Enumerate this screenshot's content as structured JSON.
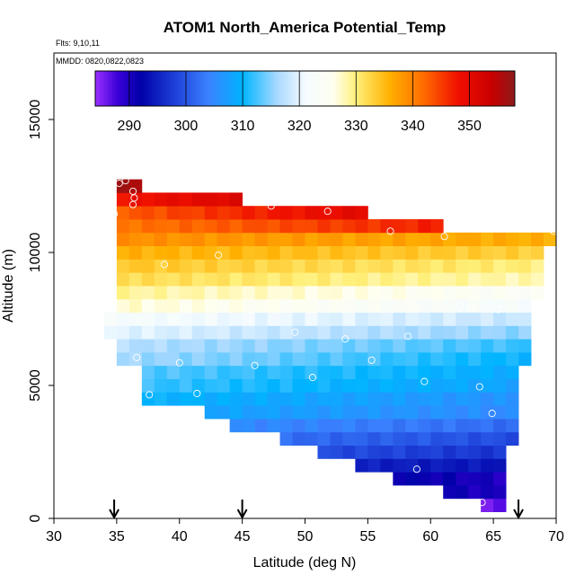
{
  "chart_data": {
    "type": "heatmap",
    "title": "ATOM1 North_America Potential_Temp",
    "annotations": [
      "Flts: 9,10,11",
      "MMDD: 0820,0822,0823"
    ],
    "xlabel": "Latitude (deg N)",
    "ylabel": "Altitude (m)",
    "xlim": [
      30,
      70
    ],
    "ylim": [
      0,
      17500
    ],
    "x_ticks": [
      30,
      35,
      40,
      45,
      50,
      55,
      60,
      65,
      70
    ],
    "y_ticks": [
      0,
      5000,
      10000,
      15000
    ],
    "colorbar": {
      "min": 284,
      "max": 358,
      "ticks": [
        290,
        300,
        310,
        320,
        330,
        340,
        350
      ],
      "stops": [
        {
          "v": 284,
          "color": "#9b30ff"
        },
        {
          "v": 288,
          "color": "#3a00d8"
        },
        {
          "v": 292,
          "color": "#0000a8"
        },
        {
          "v": 298,
          "color": "#1e40d8"
        },
        {
          "v": 304,
          "color": "#3b82ff"
        },
        {
          "v": 310,
          "color": "#00b4ff"
        },
        {
          "v": 316,
          "color": "#a6d8ff"
        },
        {
          "v": 321,
          "color": "#f4fbff"
        },
        {
          "v": 326,
          "color": "#fffff0"
        },
        {
          "v": 330,
          "color": "#fff07a"
        },
        {
          "v": 336,
          "color": "#ffb000"
        },
        {
          "v": 342,
          "color": "#ff6a00"
        },
        {
          "v": 348,
          "color": "#f01000"
        },
        {
          "v": 354,
          "color": "#c80000"
        },
        {
          "v": 358,
          "color": "#8b1a1a"
        }
      ]
    },
    "arrows_at_latitude": [
      34.8,
      45,
      67
    ],
    "bin_size": {
      "latitude_deg": 1,
      "altitude_m": 500
    },
    "row_profiles": [
      {
        "alt": 500,
        "lat_from": 64.5,
        "lat_to": 65.5,
        "temp_south": 286,
        "temp_north": 286
      },
      {
        "alt": 1000,
        "lat_from": 61.5,
        "lat_to": 65.5,
        "temp_south": 291,
        "temp_north": 290
      },
      {
        "alt": 1500,
        "lat_from": 57.5,
        "lat_to": 65.5,
        "temp_south": 292,
        "temp_north": 290
      },
      {
        "alt": 2000,
        "lat_from": 54.5,
        "lat_to": 65.5,
        "temp_south": 295,
        "temp_north": 294
      },
      {
        "alt": 2500,
        "lat_from": 51.5,
        "lat_to": 65.5,
        "temp_south": 299,
        "temp_north": 297
      },
      {
        "alt": 3000,
        "lat_from": 48.5,
        "lat_to": 66.5,
        "temp_south": 302,
        "temp_north": 299
      },
      {
        "alt": 3500,
        "lat_from": 44.5,
        "lat_to": 66.5,
        "temp_south": 305,
        "temp_north": 302
      },
      {
        "alt": 4000,
        "lat_from": 42.5,
        "lat_to": 66.5,
        "temp_south": 308,
        "temp_north": 305
      },
      {
        "alt": 4500,
        "lat_from": 37.5,
        "lat_to": 66.5,
        "temp_south": 310,
        "temp_north": 306
      },
      {
        "alt": 5000,
        "lat_from": 37.5,
        "lat_to": 66.5,
        "temp_south": 312,
        "temp_north": 308
      },
      {
        "alt": 5500,
        "lat_from": 37.5,
        "lat_to": 66.5,
        "temp_south": 313,
        "temp_north": 309
      },
      {
        "alt": 6000,
        "lat_from": 35.5,
        "lat_to": 67.5,
        "temp_south": 316,
        "temp_north": 310
      },
      {
        "alt": 6500,
        "lat_from": 35.5,
        "lat_to": 67.5,
        "temp_south": 317,
        "temp_north": 312
      },
      {
        "alt": 7000,
        "lat_from": 34.5,
        "lat_to": 67.5,
        "temp_south": 320,
        "temp_north": 315
      },
      {
        "alt": 7500,
        "lat_from": 34.5,
        "lat_to": 67.5,
        "temp_south": 322,
        "temp_north": 318
      },
      {
        "alt": 8000,
        "lat_from": 35.5,
        "lat_to": 67.5,
        "temp_south": 327,
        "temp_north": 322
      },
      {
        "alt": 8500,
        "lat_from": 35.5,
        "lat_to": 68.5,
        "temp_south": 329,
        "temp_north": 324
      },
      {
        "alt": 9000,
        "lat_from": 35.5,
        "lat_to": 68.5,
        "temp_south": 332,
        "temp_north": 328
      },
      {
        "alt": 9500,
        "lat_from": 35.5,
        "lat_to": 68.5,
        "temp_south": 334,
        "temp_north": 330
      },
      {
        "alt": 10000,
        "lat_from": 35.5,
        "lat_to": 68.5,
        "temp_south": 336,
        "temp_north": 333
      },
      {
        "alt": 10500,
        "lat_from": 35.5,
        "lat_to": 69.5,
        "temp_south": 339,
        "temp_north": 336
      },
      {
        "alt": 11000,
        "lat_from": 35.5,
        "lat_to": 60.5,
        "temp_south": 341,
        "temp_north": 347
      },
      {
        "alt": 11500,
        "lat_from": 35.5,
        "lat_to": 54.5,
        "temp_south": 343,
        "temp_north": 350
      },
      {
        "alt": 12000,
        "lat_from": 35.5,
        "lat_to": 44.5,
        "temp_south": 348,
        "temp_north": 351
      },
      {
        "alt": 12500,
        "lat_from": 35.5,
        "lat_to": 36.5,
        "temp_south": 356,
        "temp_north": 356
      }
    ],
    "sample_points": [
      {
        "lat": 35.2,
        "alt": 12600
      },
      {
        "lat": 35.7,
        "alt": 12700
      },
      {
        "lat": 36.3,
        "alt": 12300
      },
      {
        "lat": 36.4,
        "alt": 12050
      },
      {
        "lat": 36.3,
        "alt": 11800
      },
      {
        "lat": 34.8,
        "alt": 11450
      },
      {
        "lat": 47.3,
        "alt": 11750
      },
      {
        "lat": 51.8,
        "alt": 11550
      },
      {
        "lat": 56.8,
        "alt": 10800
      },
      {
        "lat": 61.1,
        "alt": 10600
      },
      {
        "lat": 69.8,
        "alt": 10800
      },
      {
        "lat": 38.8,
        "alt": 9550
      },
      {
        "lat": 43.1,
        "alt": 9900
      },
      {
        "lat": 62.3,
        "alt": 8000
      },
      {
        "lat": 63.2,
        "alt": 7950
      },
      {
        "lat": 65.4,
        "alt": 7850
      },
      {
        "lat": 49.2,
        "alt": 7000
      },
      {
        "lat": 53.2,
        "alt": 6750
      },
      {
        "lat": 58.2,
        "alt": 6850
      },
      {
        "lat": 36.6,
        "alt": 6050
      },
      {
        "lat": 40.0,
        "alt": 5850
      },
      {
        "lat": 46.0,
        "alt": 5750
      },
      {
        "lat": 55.3,
        "alt": 5950
      },
      {
        "lat": 50.6,
        "alt": 5300
      },
      {
        "lat": 59.5,
        "alt": 5150
      },
      {
        "lat": 63.9,
        "alt": 4950
      },
      {
        "lat": 37.6,
        "alt": 4650
      },
      {
        "lat": 41.4,
        "alt": 4700
      },
      {
        "lat": 64.9,
        "alt": 3950
      },
      {
        "lat": 58.9,
        "alt": 1850
      },
      {
        "lat": 64.1,
        "alt": 600
      }
    ]
  }
}
